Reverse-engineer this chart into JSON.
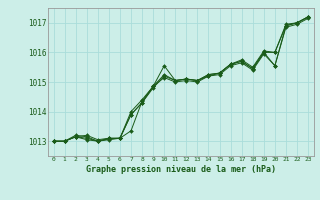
{
  "title": "Graphe pression niveau de la mer (hPa)",
  "bg_color": "#cceee8",
  "line_color": "#1a5c1a",
  "grid_color": "#aaddda",
  "xlim": [
    -0.5,
    23.5
  ],
  "ylim": [
    1012.5,
    1017.5
  ],
  "yticks": [
    1013,
    1014,
    1015,
    1016,
    1017
  ],
  "xticks": [
    0,
    1,
    2,
    3,
    4,
    5,
    6,
    7,
    8,
    9,
    10,
    11,
    12,
    13,
    14,
    15,
    16,
    17,
    18,
    19,
    20,
    21,
    22,
    23
  ],
  "series": [
    [
      1013.0,
      1013.0,
      1013.15,
      1013.2,
      1013.05,
      1013.1,
      1013.1,
      1013.35,
      1014.35,
      1014.85,
      1015.55,
      1015.05,
      1015.1,
      1015.05,
      1015.2,
      1015.3,
      1015.6,
      1015.75,
      1015.5,
      1016.05,
      1016.0,
      1016.95,
      1017.0,
      1017.2
    ],
    [
      1013.0,
      1013.0,
      1013.2,
      1013.15,
      1013.0,
      1013.1,
      1013.1,
      1013.9,
      1014.3,
      1014.8,
      1015.2,
      1015.05,
      1015.1,
      1015.05,
      1015.25,
      1015.3,
      1015.6,
      1015.7,
      1015.45,
      1016.0,
      1016.0,
      1016.9,
      1017.0,
      1017.2
    ],
    [
      1013.0,
      1013.0,
      1013.15,
      1013.1,
      1013.0,
      1013.08,
      1013.1,
      1014.0,
      1014.4,
      1014.85,
      1015.15,
      1015.0,
      1015.05,
      1015.0,
      1015.2,
      1015.25,
      1015.55,
      1015.65,
      1015.4,
      1015.95,
      1015.55,
      1016.85,
      1016.95,
      1017.15
    ],
    [
      1013.0,
      1013.0,
      1013.15,
      1013.05,
      1013.0,
      1013.05,
      1013.1,
      1013.9,
      1014.3,
      1014.85,
      1015.25,
      1015.05,
      1015.1,
      1015.05,
      1015.25,
      1015.3,
      1015.6,
      1015.7,
      1015.45,
      1016.0,
      1015.55,
      1016.9,
      1017.0,
      1017.2
    ]
  ]
}
